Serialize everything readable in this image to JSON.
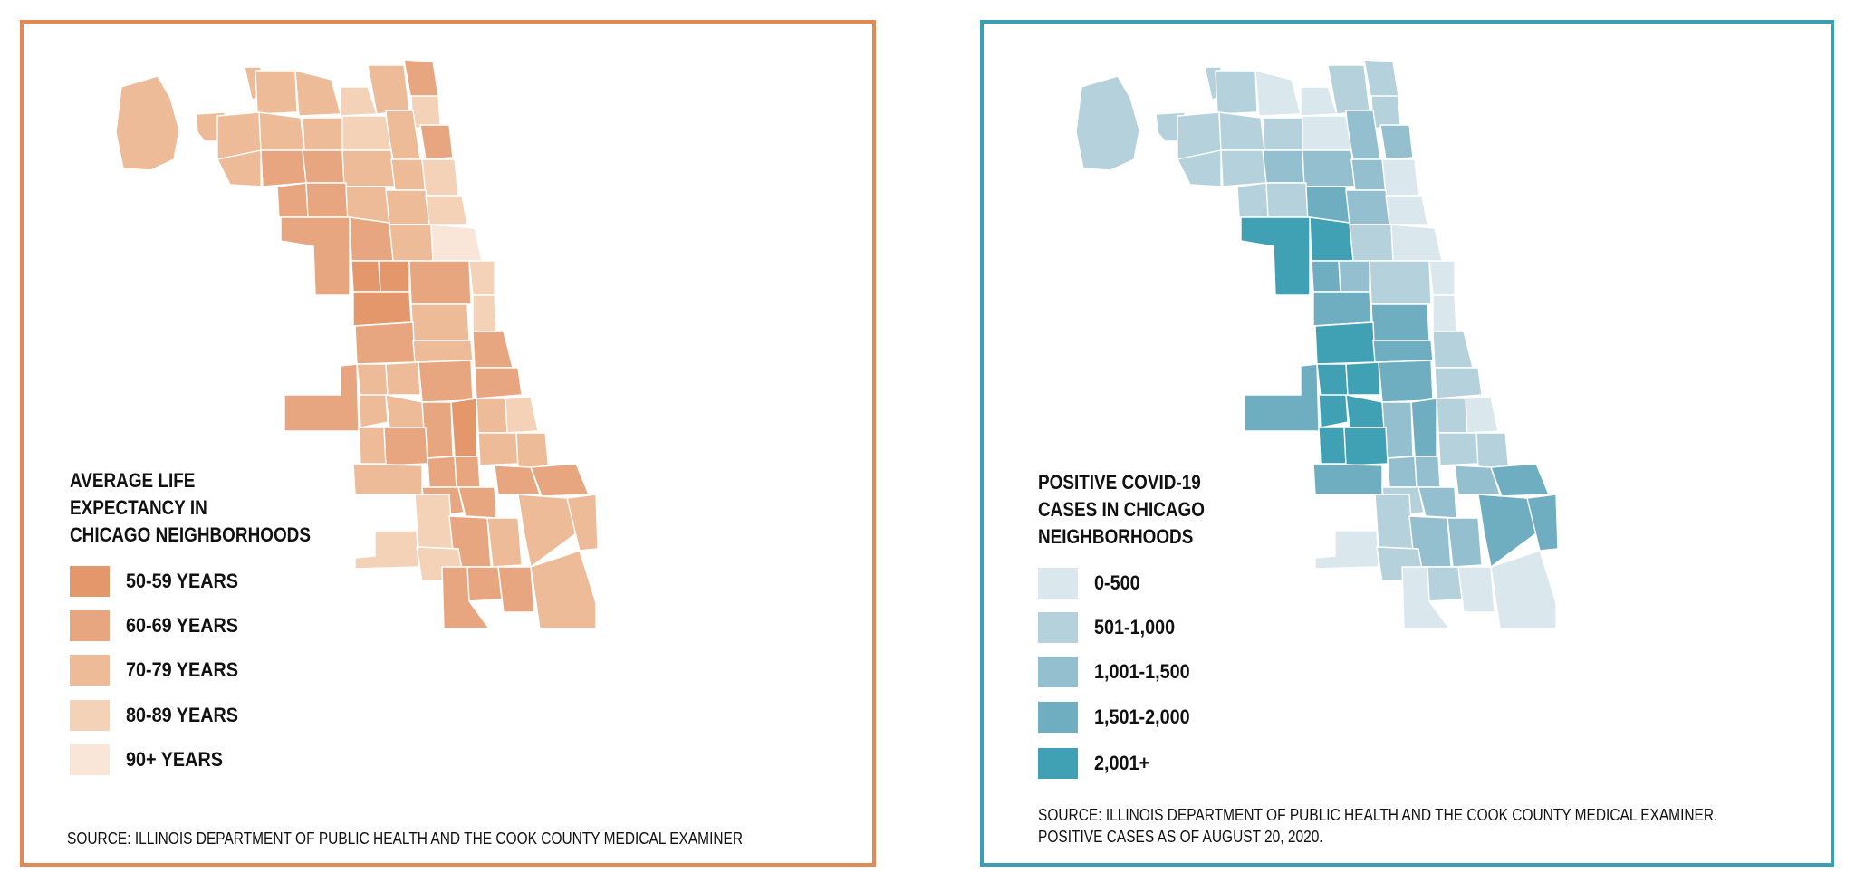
{
  "left_map": {
    "legend_title_lines": [
      "AVERAGE LIFE",
      "EXPECTANCY IN",
      "CHICAGO NEIGHBORHOODS"
    ],
    "legend": [
      {
        "label": "50-59 YEARS",
        "color": "#e3976a"
      },
      {
        "label": "60-69 YEARS",
        "color": "#e7a67f"
      },
      {
        "label": "70-79 YEARS",
        "color": "#edbb98"
      },
      {
        "label": "80-89 YEARS",
        "color": "#f3d2b8"
      },
      {
        "label": "90+ YEARS",
        "color": "#f9e6d8"
      }
    ],
    "source": "SOURCE: ILLINOIS DEPARTMENT OF PUBLIC HEALTH AND THE COOK COUNTY MEDICAL EXAMINER",
    "border_color": "#e18a55"
  },
  "right_map": {
    "legend_title_lines": [
      "POSITIVE COVID-19",
      "CASES IN CHICAGO",
      "NEIGHBORHOODS"
    ],
    "legend": [
      {
        "label": "0-500",
        "color": "#dae8ee"
      },
      {
        "label": "501-1,000",
        "color": "#b5d2dc"
      },
      {
        "label": "1,001-1,500",
        "color": "#93bfce"
      },
      {
        "label": "1,501-2,000",
        "color": "#6faec0"
      },
      {
        "label": "2,001+",
        "color": "#40a0b4"
      }
    ],
    "source_lines": [
      "SOURCE: ILLINOIS DEPARTMENT OF PUBLIC HEALTH AND THE COOK COUNTY MEDICAL EXAMINER.",
      "POSITIVE CASES AS OF AUGUST 20, 2020."
    ],
    "border_color": "#3b9fb4"
  }
}
